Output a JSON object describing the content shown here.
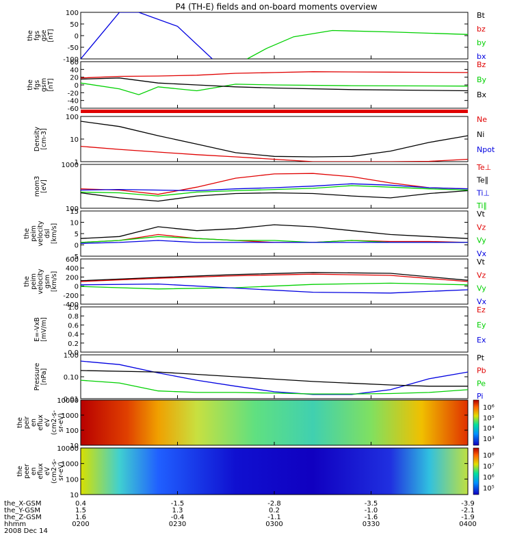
{
  "title": "P4 (TH-E) fields and on-board moments overview",
  "x_range": [
    "0200",
    "0400"
  ],
  "footer": {
    "labels": [
      "the_X-GSM",
      "the_Y-GSM",
      "the_Z-GSM",
      "hhmm",
      "2008 Dec 14"
    ],
    "x_gsm": [
      "0.4",
      "-1.5",
      "-2.8",
      "-3.5",
      "-3.9"
    ],
    "y_gsm": [
      "1.5",
      "1.3",
      "0.2",
      "-1.0",
      "-2.1"
    ],
    "z_gsm": [
      "1.6",
      "-0.4",
      "-1.1",
      "-1.6",
      "-1.9"
    ],
    "hhmm": [
      "0200",
      "0230",
      "0300",
      "0330",
      "0400"
    ]
  },
  "colors": {
    "red": "#e00000",
    "green": "#00d000",
    "blue": "#0000e0",
    "black": "#000000"
  },
  "chart_data": [
    {
      "type": "line",
      "id": "fgs-gse",
      "ylabel": [
        "the",
        "fgs",
        "gse",
        "[nT]"
      ],
      "yticks": [
        "100",
        "50",
        "0",
        "-50",
        "-100"
      ],
      "ylim": [
        -100,
        100
      ],
      "legend": [
        {
          "label": "Bt",
          "color": "#000000"
        },
        {
          "label": "bz",
          "color": "#e00000"
        },
        {
          "label": "by",
          "color": "#00d000"
        },
        {
          "label": "bx",
          "color": "#0000e0"
        }
      ],
      "series": [
        {
          "name": "by",
          "color": "#00d000",
          "x": [
            0.43,
            0.48,
            0.55,
            0.65,
            0.8,
            1.0
          ],
          "y": [
            -100,
            -55,
            -5,
            22,
            16,
            5
          ]
        },
        {
          "name": "bx",
          "color": "#0000e0",
          "x": [
            0.0,
            0.07,
            0.1,
            0.15,
            0.25,
            0.34
          ],
          "y": [
            -100,
            40,
            100,
            105,
            40,
            -100
          ]
        }
      ]
    },
    {
      "type": "line",
      "id": "fgs-gsm",
      "ylabel": [
        "the",
        "fgs",
        "gsm",
        "[nT]"
      ],
      "yticks": [
        "60",
        "40",
        "20",
        "0",
        "-20",
        "-40",
        "-60"
      ],
      "ylim": [
        -60,
        60
      ],
      "legend": [
        {
          "label": "Bz",
          "color": "#e00000"
        },
        {
          "label": "By",
          "color": "#00d000"
        },
        {
          "label": "Bx",
          "color": "#000000"
        }
      ],
      "series": [
        {
          "name": "Bz",
          "color": "#e00000",
          "x": [
            0,
            0.1,
            0.2,
            0.3,
            0.4,
            0.5,
            0.6,
            0.8,
            1.0
          ],
          "y": [
            18,
            22,
            23,
            25,
            30,
            32,
            34,
            33,
            32
          ]
        },
        {
          "name": "By",
          "color": "#00d000",
          "x": [
            0,
            0.1,
            0.15,
            0.2,
            0.3,
            0.4,
            0.5,
            0.7,
            1.0
          ],
          "y": [
            5,
            -10,
            -25,
            -5,
            -15,
            2,
            0,
            -2,
            -3
          ]
        },
        {
          "name": "Bx",
          "color": "#000000",
          "x": [
            0,
            0.1,
            0.2,
            0.3,
            0.4,
            0.5,
            0.7,
            1.0
          ],
          "y": [
            15,
            18,
            5,
            0,
            -5,
            -8,
            -12,
            -15
          ]
        }
      ]
    },
    {
      "type": "line",
      "id": "density",
      "scale": "log",
      "ylabel": [
        "Density",
        "[cm-3]"
      ],
      "yticks": [
        "100",
        "10",
        "1"
      ],
      "ylim": [
        0.4,
        150
      ],
      "legend": [
        {
          "label": "Ne",
          "color": "#e00000"
        },
        {
          "label": "Ni",
          "color": "#000000"
        },
        {
          "label": "Npot",
          "color": "#0000e0"
        }
      ],
      "series": [
        {
          "name": "Ni",
          "color": "#000000",
          "x": [
            0,
            0.1,
            0.2,
            0.3,
            0.4,
            0.5,
            0.6,
            0.7,
            0.8,
            0.9,
            1.0
          ],
          "y": [
            80,
            40,
            12,
            4,
            1.3,
            0.8,
            0.75,
            0.8,
            1.6,
            5,
            12
          ]
        },
        {
          "name": "Ne",
          "color": "#e00000",
          "x": [
            0,
            0.1,
            0.2,
            0.3,
            0.4,
            0.5,
            0.6,
            0.7,
            0.8,
            0.9,
            1.0
          ],
          "y": [
            3,
            2,
            1.4,
            1.0,
            0.75,
            0.55,
            0.4,
            0.35,
            0.35,
            0.42,
            0.55
          ]
        }
      ]
    },
    {
      "type": "line",
      "id": "temperature",
      "scale": "log",
      "ylabel": [
        "mom3",
        "[eV]"
      ],
      "yticks": [
        "1000",
        "100"
      ],
      "ylim": [
        100,
        1200
      ],
      "legend": [
        {
          "label": "Te⊥",
          "color": "#e00000"
        },
        {
          "label": "Te∥",
          "color": "#000000"
        },
        {
          "label": "Ti⊥",
          "color": "#0000e0"
        },
        {
          "label": "Ti∥",
          "color": "#00d000"
        }
      ],
      "series": [
        {
          "name": "Te⊥",
          "color": "#e00000",
          "x": [
            0,
            0.1,
            0.2,
            0.3,
            0.4,
            0.5,
            0.6,
            0.7,
            0.8,
            0.9,
            1.0
          ],
          "y": [
            300,
            280,
            220,
            330,
            550,
            700,
            720,
            600,
            420,
            320,
            300
          ]
        },
        {
          "name": "Te∥",
          "color": "#000000",
          "x": [
            0,
            0.1,
            0.2,
            0.3,
            0.4,
            0.5,
            0.6,
            0.7,
            0.8,
            0.9,
            1.0
          ],
          "y": [
            240,
            180,
            150,
            200,
            230,
            240,
            230,
            200,
            180,
            230,
            270
          ]
        },
        {
          "name": "Ti⊥",
          "color": "#0000e0",
          "x": [
            0,
            0.1,
            0.2,
            0.3,
            0.4,
            0.5,
            0.6,
            0.7,
            0.8,
            0.9,
            1.0
          ],
          "y": [
            280,
            290,
            280,
            270,
            300,
            320,
            350,
            400,
            370,
            320,
            300
          ]
        },
        {
          "name": "Ti∥",
          "color": "#00d000",
          "x": [
            0,
            0.1,
            0.2,
            0.3,
            0.4,
            0.5,
            0.6,
            0.7,
            0.8,
            0.9,
            1.0
          ],
          "y": [
            250,
            240,
            200,
            250,
            270,
            290,
            310,
            360,
            330,
            300,
            280
          ]
        }
      ]
    },
    {
      "type": "line",
      "id": "velocity-dsl",
      "ylabel": [
        "the",
        "peim",
        "velocity",
        "dsl",
        "[km/s]"
      ],
      "yticks": [
        "15",
        "10",
        "5",
        "0",
        "-5"
      ],
      "ylim": [
        -7,
        16
      ],
      "legend": [
        {
          "label": "Vt",
          "color": "#000000"
        },
        {
          "label": "Vz",
          "color": "#e00000"
        },
        {
          "label": "Vy",
          "color": "#00d000"
        },
        {
          "label": "Vx",
          "color": "#0000e0"
        }
      ],
      "series": [
        {
          "name": "Vt",
          "color": "#000000",
          "x": [
            0,
            0.1,
            0.2,
            0.3,
            0.4,
            0.5,
            0.6,
            0.7,
            0.8,
            0.9,
            1.0
          ],
          "y": [
            2,
            3,
            8,
            6,
            7,
            9,
            8,
            6,
            4,
            3,
            2
          ]
        },
        {
          "name": "Vz",
          "color": "#e00000",
          "x": [
            0,
            0.1,
            0.2,
            0.3,
            0.4,
            0.5,
            0.6,
            0.7,
            0.8,
            0.9,
            1.0
          ],
          "y": [
            0,
            1,
            4,
            2,
            1,
            0,
            0,
            1,
            0.5,
            0.5,
            0
          ]
        },
        {
          "name": "Vy",
          "color": "#00d000",
          "x": [
            0,
            0.1,
            0.2,
            0.3,
            0.4,
            0.5,
            0.6,
            0.7,
            0.8,
            0.9,
            1.0
          ],
          "y": [
            0,
            1,
            3,
            2,
            1,
            1,
            0,
            1,
            0,
            0,
            0
          ]
        },
        {
          "name": "Vx",
          "color": "#0000e0",
          "x": [
            0,
            0.1,
            0.2,
            0.3,
            0.4,
            0.5,
            0.6,
            0.7,
            0.8,
            0.9,
            1.0
          ],
          "y": [
            -0.5,
            0,
            1,
            0,
            0,
            0,
            0,
            0,
            0,
            0,
            0
          ]
        }
      ]
    },
    {
      "type": "line",
      "id": "velocity-gsm",
      "ylabel": [
        "the",
        "peim",
        "velocity",
        "gsm",
        "[km/s]"
      ],
      "yticks": [
        "600",
        "400",
        "200",
        "0",
        "-200",
        "-400"
      ],
      "ylim": [
        -450,
        650
      ],
      "legend": [
        {
          "label": "Vt",
          "color": "#000000"
        },
        {
          "label": "Vz",
          "color": "#e00000"
        },
        {
          "label": "Vy",
          "color": "#00d000"
        },
        {
          "label": "Vx",
          "color": "#0000e0"
        }
      ],
      "series": [
        {
          "name": "Vt",
          "color": "#000000",
          "x": [
            0,
            0.2,
            0.4,
            0.6,
            0.8,
            1.0
          ],
          "y": [
            120,
            200,
            270,
            320,
            300,
            130
          ]
        },
        {
          "name": "Vz",
          "color": "#e00000",
          "x": [
            0,
            0.2,
            0.4,
            0.6,
            0.8,
            1.0
          ],
          "y": [
            100,
            180,
            240,
            280,
            250,
            100
          ]
        },
        {
          "name": "Vy",
          "color": "#00d000",
          "x": [
            0,
            0.2,
            0.4,
            0.6,
            0.8,
            1.0
          ],
          "y": [
            -20,
            -80,
            -50,
            30,
            60,
            20
          ]
        },
        {
          "name": "Vx",
          "color": "#0000e0",
          "x": [
            0,
            0.2,
            0.4,
            0.6,
            0.8,
            1.0
          ],
          "y": [
            20,
            40,
            -60,
            -160,
            -180,
            -100
          ]
        }
      ]
    },
    {
      "type": "line",
      "id": "efield",
      "ylabel": [
        "E=-VxB",
        "[mV/m]"
      ],
      "yticks": [
        "1.0",
        "0.8",
        "0.6",
        "0.4",
        "0.2",
        "0.0"
      ],
      "ylim": [
        0,
        1
      ],
      "legend": [
        {
          "label": "Ez",
          "color": "#e00000"
        },
        {
          "label": "Ey",
          "color": "#00d000"
        },
        {
          "label": "Ex",
          "color": "#0000e0"
        }
      ],
      "series": []
    },
    {
      "type": "line",
      "id": "pressure",
      "scale": "log",
      "ylabel": [
        "Pressure",
        "[nPa]"
      ],
      "yticks": [
        "1.00",
        "0.10",
        "0.01"
      ],
      "ylim": [
        0.008,
        5
      ],
      "legend": [
        {
          "label": "Pt",
          "color": "#000000"
        },
        {
          "label": "Pb",
          "color": "#e00000"
        },
        {
          "label": "Pe",
          "color": "#00d000"
        },
        {
          "label": "Pi",
          "color": "#0000e0"
        }
      ],
      "series": [
        {
          "name": "Pi",
          "color": "#0000e0",
          "x": [
            0,
            0.1,
            0.2,
            0.3,
            0.4,
            0.5,
            0.6,
            0.7,
            0.8,
            0.9,
            1.0
          ],
          "y": [
            2,
            1.2,
            0.35,
            0.12,
            0.05,
            0.022,
            0.015,
            0.015,
            0.03,
            0.15,
            0.4
          ]
        },
        {
          "name": "Pe",
          "color": "#00d000",
          "x": [
            0,
            0.1,
            0.2,
            0.3,
            0.4,
            0.5,
            0.6,
            0.7,
            0.8,
            0.9,
            1.0
          ],
          "y": [
            0.12,
            0.08,
            0.025,
            0.02,
            0.02,
            0.018,
            0.016,
            0.016,
            0.017,
            0.02,
            0.03
          ]
        },
        {
          "name": "Pt",
          "color": "#000000",
          "x": [
            0,
            0.2,
            0.4,
            0.6,
            0.8,
            0.9,
            1.0
          ],
          "y": [
            0.5,
            0.4,
            0.2,
            0.1,
            0.06,
            0.05,
            0.05
          ]
        }
      ]
    },
    {
      "type": "heatmap",
      "id": "ion-spec",
      "scale": "log",
      "ylabel": [
        "the",
        "peir",
        "en",
        "eflux",
        "eV",
        "(cm2-s-",
        "sr-eV)"
      ],
      "yticks": [
        "10000",
        "1000",
        "100",
        "10"
      ],
      "ylim": [
        7,
        25000
      ],
      "colorbar": {
        "ticks": [
          "10⁶",
          "10⁵",
          "10⁴",
          "10³"
        ]
      }
    },
    {
      "type": "heatmap",
      "id": "electron-spec",
      "scale": "log",
      "ylabel": [
        "the",
        "peer",
        "en",
        "eflux",
        "eV",
        "(cm2-s-",
        "sr-eV)"
      ],
      "yticks": [
        "10000",
        "1000",
        "100",
        "10"
      ],
      "ylim": [
        7,
        25000
      ],
      "colorbar": {
        "ticks": [
          "10⁸",
          "10⁷",
          "10⁶",
          "10⁵"
        ]
      }
    }
  ]
}
